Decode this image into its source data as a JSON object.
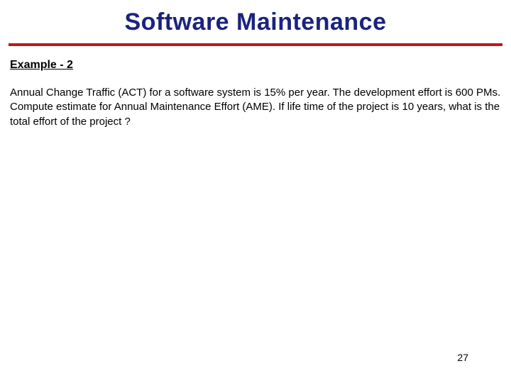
{
  "slide": {
    "title": "Software Maintenance",
    "subtitle": "Example - 2",
    "body": "Annual Change Traffic (ACT) for a software system is 15% per year. The development effort is 600 PMs. Compute estimate for Annual Maintenance Effort (AME). If life time of the project is 10 years, what is the total effort of the project ?",
    "page_number": "27",
    "title_color": "#1a237e",
    "rule_color": "#b71c1c",
    "background_color": "#ffffff",
    "text_color": "#000000",
    "title_fontsize": 34,
    "subtitle_fontsize": 16,
    "body_fontsize": 15,
    "page_number_fontsize": 14
  }
}
